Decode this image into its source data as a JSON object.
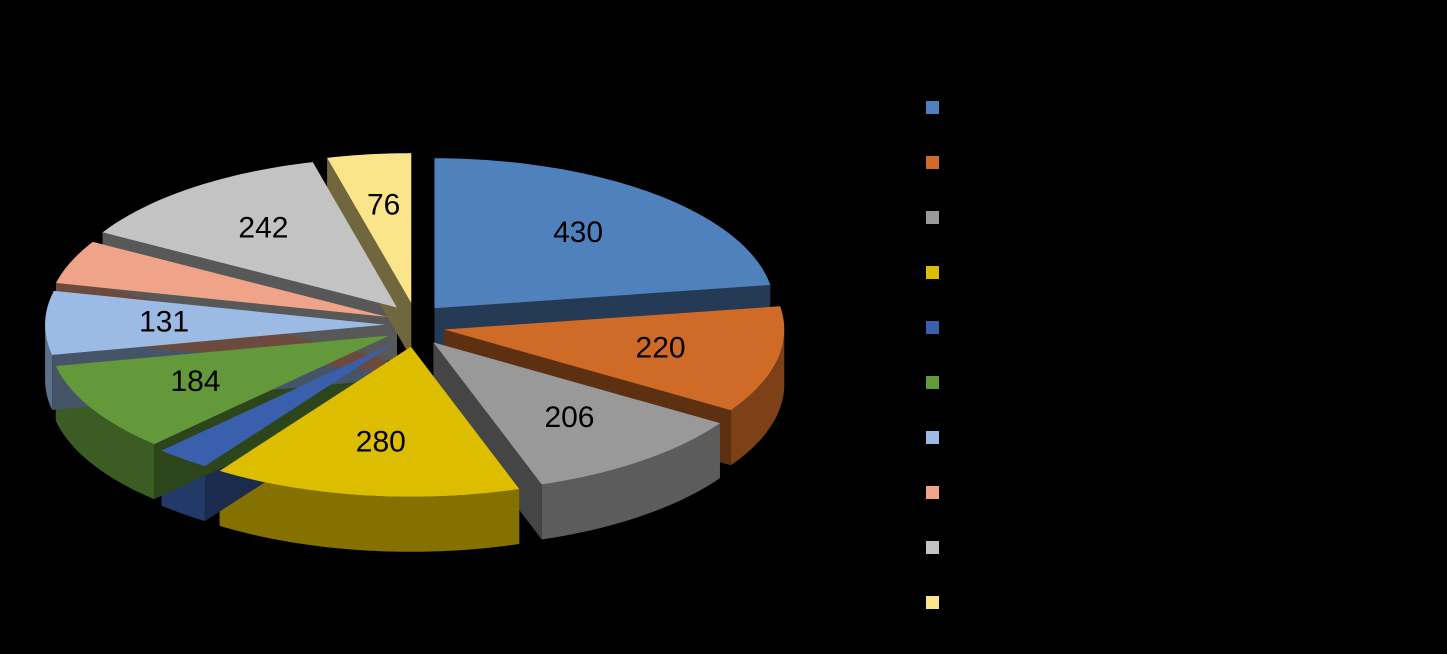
{
  "chart_data": {
    "type": "pie3d",
    "values": [
      430,
      220,
      206,
      280,
      50,
      184,
      131,
      90,
      242,
      76
    ],
    "value_labels": [
      430,
      220,
      206,
      280,
      null,
      184,
      131,
      null,
      242,
      76
    ],
    "colors": [
      "#4f81bd",
      "#d06b27",
      "#999999",
      "#dcbd00",
      "#3a5fad",
      "#63993a",
      "#9bbbe4",
      "#efa48a",
      "#c3c3c3",
      "#fbe58a"
    ],
    "legend": "right"
  }
}
